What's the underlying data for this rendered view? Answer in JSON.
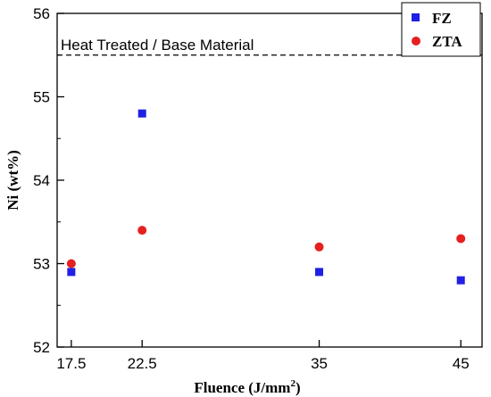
{
  "chart_data": {
    "type": "scatter",
    "xlabel": "Fluence (J/mm",
    "xlabel_sup": "2",
    "xlabel_suffix": ")",
    "ylabel": "Ni (wt%)",
    "x_ticks": [
      17.5,
      22.5,
      35,
      45
    ],
    "x_tick_labels": [
      "17.5",
      "22.5",
      "35",
      "45"
    ],
    "xlim": [
      16.5,
      46.5
    ],
    "y_ticks": [
      52,
      53,
      54,
      55,
      56
    ],
    "y_tick_labels": [
      "52",
      "53",
      "54",
      "55",
      "56"
    ],
    "ylim": [
      52,
      56
    ],
    "grid": false,
    "legend_position": "top-right",
    "series": [
      {
        "name": "FZ",
        "marker": "square",
        "color": "#1f1fe6",
        "x": [
          17.5,
          22.5,
          35,
          45
        ],
        "y": [
          52.9,
          54.8,
          52.9,
          52.8
        ]
      },
      {
        "name": "ZTA",
        "marker": "circle",
        "color": "#e61f1f",
        "x": [
          17.5,
          22.5,
          35,
          45
        ],
        "y": [
          53.0,
          53.4,
          53.2,
          53.3
        ]
      }
    ],
    "reference_line": {
      "label": "Heat Treated / Base Material",
      "y": 55.5,
      "style": "dashed",
      "color": "#000000"
    }
  }
}
